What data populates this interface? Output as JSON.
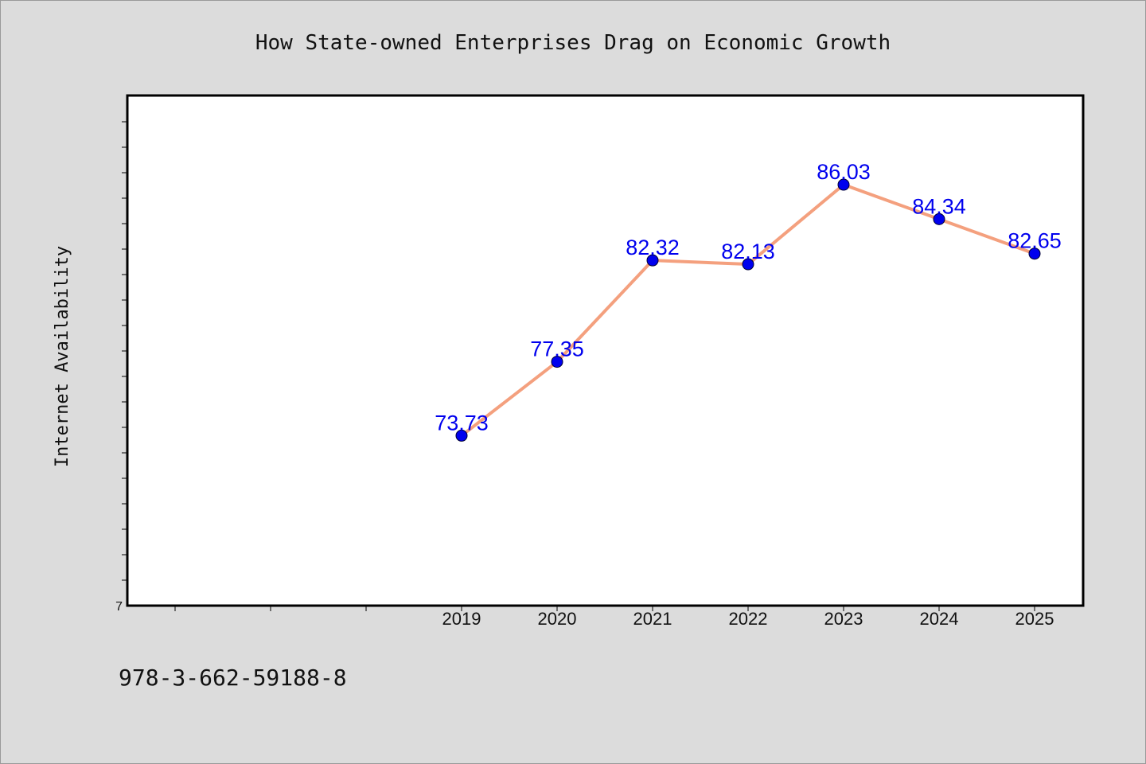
{
  "footnote": "978-3-662-59188-8",
  "chart_data": {
    "type": "line",
    "title": "How State-owned Enterprises Drag on Economic Growth",
    "xlabel": "",
    "ylabel": "Internet Availability",
    "x_categories": [
      "",
      "",
      "",
      "2019",
      "2020",
      "2021",
      "2022",
      "2023",
      "2024",
      "2025"
    ],
    "y_tick_label": "7",
    "ylim": [
      65.4,
      90.4
    ],
    "grid": false,
    "series": [
      {
        "x": [
          "2019",
          "2020",
          "2021",
          "2022",
          "2023",
          "2024",
          "2025"
        ],
        "values": [
          73.73,
          77.35,
          82.32,
          82.13,
          86.03,
          84.34,
          82.65
        ],
        "labels": [
          "73.73",
          "77.35",
          "82.32",
          "82.13",
          "86.03",
          "84.34",
          "82.65"
        ]
      }
    ],
    "colors": {
      "line": "#f4a07e",
      "marker": "#0000ee",
      "label": "#0000ee",
      "plot_bg": "#ffffff",
      "page_bg": "#dcdcdc"
    }
  }
}
